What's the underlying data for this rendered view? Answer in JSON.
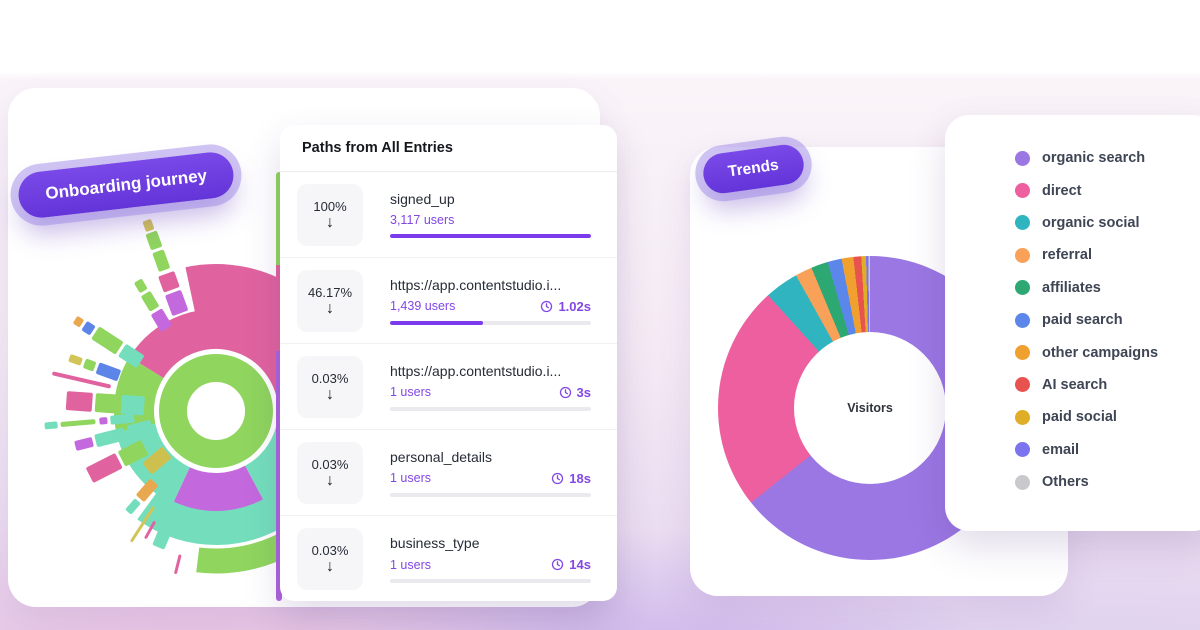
{
  "badges": {
    "onboarding": "Onboarding journey",
    "trends": "Trends"
  },
  "paths_card": {
    "title": "Paths from All Entries",
    "arrow_icon": "↓",
    "rows": [
      {
        "percent": "100%",
        "title": "signed_up",
        "users": "3,117 users",
        "time": "",
        "bar_percent": 100
      },
      {
        "percent": "46.17%",
        "title": "https://app.contentstudio.i...",
        "users": "1,439 users",
        "time": "1.02s",
        "bar_percent": 46.5
      },
      {
        "percent": "0.03%",
        "title": "https://app.contentstudio.i...",
        "users": "1 users",
        "time": "3s",
        "bar_percent": 0
      },
      {
        "percent": "0.03%",
        "title": "personal_details",
        "users": "1 users",
        "time": "18s",
        "bar_percent": 0
      },
      {
        "percent": "0.03%",
        "title": "business_type",
        "users": "1 users",
        "time": "14s",
        "bar_percent": 0
      }
    ]
  },
  "trends": {
    "center_label": "Visitors"
  },
  "chart_data": [
    {
      "type": "pie",
      "title": "Visitors",
      "labels": [
        "organic search",
        "direct",
        "organic social",
        "referral",
        "affiliates",
        "paid search",
        "other campaigns",
        "AI search",
        "paid social",
        "email",
        "Others"
      ],
      "values": [
        64.3,
        24.0,
        3.6,
        1.8,
        1.8,
        1.5,
        1.25,
        0.83,
        0.5,
        0.25,
        0.17
      ],
      "colors": [
        "#9b77e3",
        "#ed5f9e",
        "#30b5c0",
        "#f9a158",
        "#2ea873",
        "#5c87ea",
        "#efa02f",
        "#e9534f",
        "#e0ae26",
        "#7b74ee",
        "#c9c9cd"
      ],
      "legend_position": "right",
      "center_label": "Visitors"
    },
    {
      "type": "table",
      "title": "Paths from All Entries",
      "columns": [
        "percent_of_entries",
        "step",
        "users",
        "avg_time"
      ],
      "rows": [
        [
          "100%",
          "signed_up",
          "3,117 users",
          ""
        ],
        [
          "46.17%",
          "https://app.contentstudio.i...",
          "1,439 users",
          "1.02s"
        ],
        [
          "0.03%",
          "https://app.contentstudio.i...",
          "1 users",
          "3s"
        ],
        [
          "0.03%",
          "personal_details",
          "1 users",
          "18s"
        ],
        [
          "0.03%",
          "business_type",
          "1 users",
          "14s"
        ]
      ]
    }
  ],
  "colors": {
    "accent_purple": "#7c3aed",
    "users_purple": "#8247e5",
    "badge_purple": "#6a3be0",
    "bar_track": "#e9e9ee",
    "strip_green": "#8fd55e",
    "strip_pink": "#e0639f",
    "strip_purple": "#ad64dd"
  }
}
